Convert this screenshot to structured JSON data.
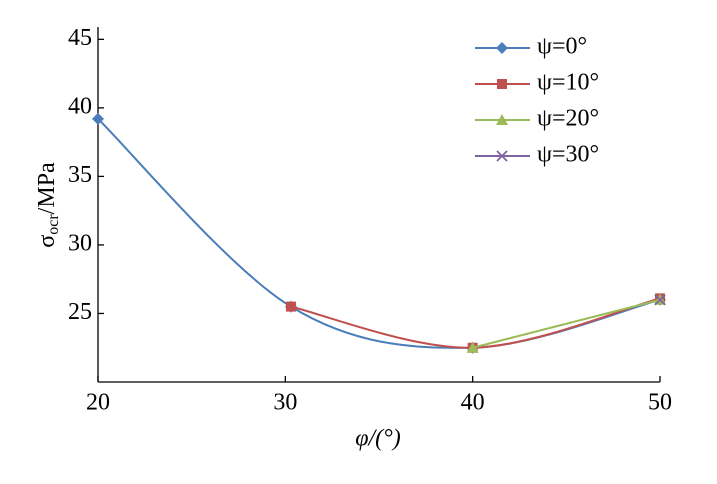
{
  "chart_data": {
    "type": "line",
    "x_label": "φ/(°)",
    "y_label": {
      "symbol": "σ",
      "subscript": "ocr",
      "unit": "/MPa"
    },
    "x": [
      20,
      30.3,
      40,
      50
    ],
    "series": [
      {
        "name": "ψ=0°",
        "color": "#4a7ebb",
        "marker": "diamond",
        "values": [
          39.2,
          25.5,
          22.5,
          26.0
        ]
      },
      {
        "name": "ψ=10°",
        "color": "#c0504d",
        "marker": "square",
        "values": [
          null,
          25.5,
          22.5,
          26.1
        ]
      },
      {
        "name": "ψ=20°",
        "color": "#9bbb59",
        "marker": "triangle",
        "values": [
          null,
          null,
          22.5,
          26.0
        ]
      },
      {
        "name": "ψ=30°",
        "color": "#8064a2",
        "marker": "cross",
        "values": [
          null,
          null,
          null,
          26.0
        ]
      }
    ],
    "xlim": [
      20,
      50
    ],
    "xticks": [
      20,
      30,
      40,
      50
    ],
    "ylim": [
      20,
      45.9
    ],
    "yticks": [
      25,
      30,
      35,
      40,
      45
    ],
    "legend": "upper-right",
    "grid": false
  }
}
